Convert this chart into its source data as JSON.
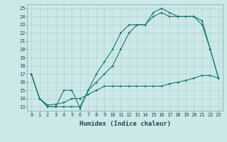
{
  "title": "",
  "xlabel": "Humidex (Indice chaleur)",
  "bg_color": "#cce8e8",
  "line_color": "#1a7a6e",
  "grid_color": "#aacfcf",
  "grid_major_color": "#99c4c4",
  "xlim": [
    -0.5,
    23.5
  ],
  "ylim": [
    12.5,
    25.5
  ],
  "xticks": [
    0,
    1,
    2,
    3,
    4,
    5,
    6,
    7,
    8,
    9,
    10,
    11,
    12,
    13,
    14,
    15,
    16,
    17,
    18,
    19,
    20,
    21,
    22,
    23
  ],
  "yticks": [
    13,
    14,
    15,
    16,
    17,
    18,
    19,
    20,
    21,
    22,
    23,
    24,
    25
  ],
  "line1_x": [
    0,
    1,
    2,
    3,
    4,
    5,
    6,
    7,
    8,
    9,
    10,
    11,
    12,
    13,
    14,
    15,
    16,
    17,
    18,
    19,
    20,
    21,
    22,
    23
  ],
  "line1_y": [
    17,
    14,
    13,
    13,
    13,
    13,
    13,
    15,
    16,
    17,
    18,
    20,
    22,
    23,
    23,
    24.5,
    25,
    24.5,
    24,
    24,
    24,
    23.5,
    20,
    16.5
  ],
  "line2_x": [
    0,
    1,
    2,
    3,
    4,
    5,
    6,
    7,
    8,
    9,
    10,
    11,
    12,
    13,
    14,
    15,
    16,
    17,
    18,
    19,
    20,
    21,
    22,
    23
  ],
  "line2_y": [
    17,
    14,
    13,
    13,
    15,
    15,
    12.8,
    15,
    17,
    18.5,
    20,
    22,
    23,
    23,
    23,
    24,
    24.5,
    24,
    24,
    24,
    24,
    23,
    20,
    16.5
  ],
  "line3_x": [
    0,
    1,
    2,
    3,
    4,
    5,
    6,
    7,
    8,
    9,
    10,
    11,
    12,
    13,
    14,
    15,
    16,
    17,
    18,
    19,
    20,
    21,
    22,
    23
  ],
  "line3_y": [
    17,
    14,
    13.2,
    13.3,
    13.5,
    14,
    14,
    14.5,
    15,
    15.5,
    15.5,
    15.5,
    15.5,
    15.5,
    15.5,
    15.5,
    15.5,
    15.8,
    16,
    16.2,
    16.5,
    16.8,
    16.8,
    16.5
  ],
  "tick_fontsize": 5.0,
  "xlabel_fontsize": 6.5,
  "marker_size": 2.0,
  "line_width": 0.8
}
